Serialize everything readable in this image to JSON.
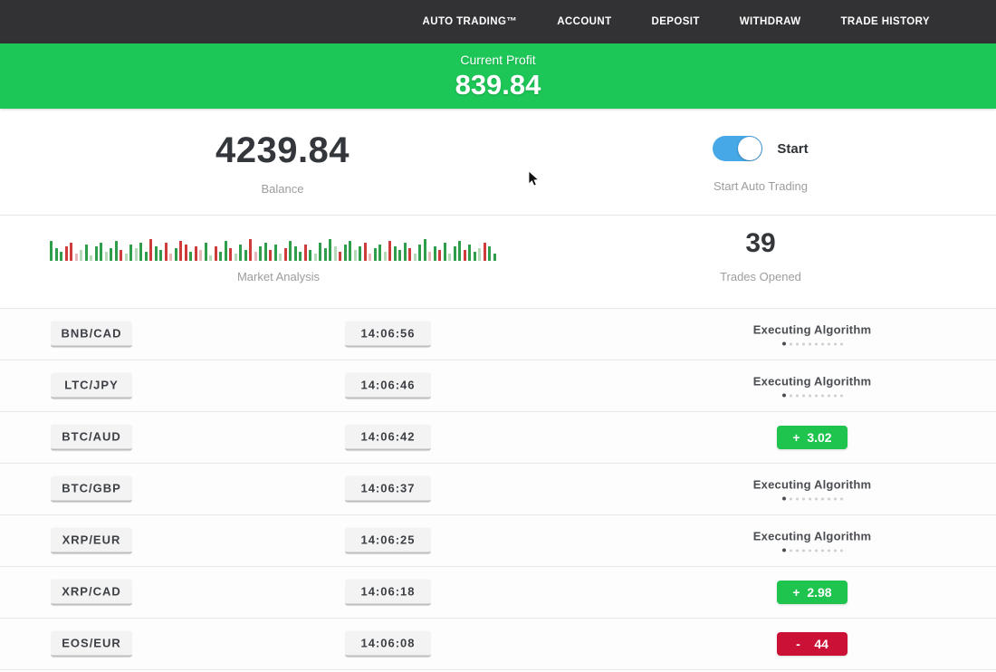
{
  "colors": {
    "nav_bg": "#323234",
    "banner_green": "#1cc757",
    "toggle_blue": "#47a8e8",
    "profit_green": "#1ec44e",
    "loss_red": "#cb1236",
    "chip_bg": "#f3f3f3",
    "chip_border": "#bdbdbd",
    "divider": "#e7e7e7"
  },
  "nav": {
    "items": [
      {
        "label": "AUTO TRADING™"
      },
      {
        "label": "ACCOUNT"
      },
      {
        "label": "DEPOSIT"
      },
      {
        "label": "WITHDRAW"
      },
      {
        "label": "TRADE HISTORY"
      }
    ]
  },
  "profit_banner": {
    "label": "Current Profit",
    "value": "839.84"
  },
  "stats": {
    "balance": {
      "value": "4239.84",
      "label": "Balance"
    },
    "auto_trading": {
      "toggle_label": "Start",
      "label": "Start Auto Trading",
      "toggle_on": true
    },
    "market_analysis": {
      "label": "Market Analysis"
    },
    "trades_opened": {
      "value": "39",
      "label": "Trades Opened"
    }
  },
  "chart_data": {
    "type": "bar",
    "title": "Market Analysis",
    "description": "Decorative mini bar strip of green/red market ticks, bottom-aligned, no axes",
    "bar_colors": {
      "g": "#2e9e4a",
      "r": "#cf3a3a",
      "lg": "#b6dab9",
      "lr": "#e6b8bc"
    },
    "bars": [
      [
        22,
        "g"
      ],
      [
        14,
        "g"
      ],
      [
        10,
        "g"
      ],
      [
        16,
        "r"
      ],
      [
        20,
        "r"
      ],
      [
        8,
        "lr"
      ],
      [
        12,
        "lg"
      ],
      [
        18,
        "g"
      ],
      [
        6,
        "lg"
      ],
      [
        16,
        "g"
      ],
      [
        20,
        "g"
      ],
      [
        10,
        "lg"
      ],
      [
        14,
        "g"
      ],
      [
        22,
        "g"
      ],
      [
        12,
        "r"
      ],
      [
        8,
        "lg"
      ],
      [
        18,
        "g"
      ],
      [
        14,
        "lg"
      ],
      [
        20,
        "g"
      ],
      [
        10,
        "g"
      ],
      [
        24,
        "r"
      ],
      [
        16,
        "g"
      ],
      [
        12,
        "g"
      ],
      [
        20,
        "r"
      ],
      [
        8,
        "lr"
      ],
      [
        14,
        "g"
      ],
      [
        22,
        "r"
      ],
      [
        18,
        "r"
      ],
      [
        10,
        "g"
      ],
      [
        16,
        "r"
      ],
      [
        12,
        "lr"
      ],
      [
        20,
        "g"
      ],
      [
        6,
        "lg"
      ],
      [
        16,
        "r"
      ],
      [
        10,
        "g"
      ],
      [
        22,
        "g"
      ],
      [
        14,
        "r"
      ],
      [
        8,
        "lg"
      ],
      [
        18,
        "g"
      ],
      [
        12,
        "g"
      ],
      [
        24,
        "r"
      ],
      [
        10,
        "lr"
      ],
      [
        16,
        "g"
      ],
      [
        20,
        "g"
      ],
      [
        12,
        "r"
      ],
      [
        18,
        "g"
      ],
      [
        8,
        "lg"
      ],
      [
        14,
        "r"
      ],
      [
        22,
        "g"
      ],
      [
        16,
        "g"
      ],
      [
        10,
        "g"
      ],
      [
        18,
        "r"
      ],
      [
        12,
        "g"
      ],
      [
        8,
        "lg"
      ],
      [
        20,
        "g"
      ],
      [
        14,
        "g"
      ],
      [
        24,
        "g"
      ],
      [
        16,
        "lg"
      ],
      [
        10,
        "r"
      ],
      [
        18,
        "g"
      ],
      [
        22,
        "g"
      ],
      [
        12,
        "lg"
      ],
      [
        16,
        "g"
      ],
      [
        20,
        "r"
      ],
      [
        8,
        "lr"
      ],
      [
        14,
        "g"
      ],
      [
        18,
        "g"
      ],
      [
        10,
        "lg"
      ],
      [
        22,
        "r"
      ],
      [
        16,
        "g"
      ],
      [
        12,
        "g"
      ],
      [
        20,
        "g"
      ],
      [
        14,
        "r"
      ],
      [
        8,
        "lg"
      ],
      [
        18,
        "g"
      ],
      [
        24,
        "g"
      ],
      [
        10,
        "lr"
      ],
      [
        16,
        "g"
      ],
      [
        12,
        "r"
      ],
      [
        20,
        "g"
      ],
      [
        8,
        "lg"
      ],
      [
        16,
        "g"
      ],
      [
        22,
        "g"
      ],
      [
        12,
        "r"
      ],
      [
        18,
        "g"
      ],
      [
        10,
        "g"
      ],
      [
        14,
        "lg"
      ],
      [
        20,
        "r"
      ],
      [
        16,
        "g"
      ],
      [
        8,
        "g"
      ]
    ]
  },
  "loader": {
    "dot_count": 10
  },
  "trades": [
    {
      "pair": "BNB/CAD",
      "time": "14:06:56",
      "status": {
        "type": "executing",
        "label": "Executing Algorithm"
      }
    },
    {
      "pair": "LTC/JPY",
      "time": "14:06:46",
      "status": {
        "type": "executing",
        "label": "Executing Algorithm"
      }
    },
    {
      "pair": "BTC/AUD",
      "time": "14:06:42",
      "status": {
        "type": "profit",
        "text": "+  3.02"
      }
    },
    {
      "pair": "BTC/GBP",
      "time": "14:06:37",
      "status": {
        "type": "executing",
        "label": "Executing Algorithm"
      }
    },
    {
      "pair": "XRP/EUR",
      "time": "14:06:25",
      "status": {
        "type": "executing",
        "label": "Executing Algorithm"
      }
    },
    {
      "pair": "XRP/CAD",
      "time": "14:06:18",
      "status": {
        "type": "profit",
        "text": "+  2.98"
      }
    },
    {
      "pair": "EOS/EUR",
      "time": "14:06:08",
      "status": {
        "type": "loss",
        "text": "-    44"
      }
    }
  ]
}
